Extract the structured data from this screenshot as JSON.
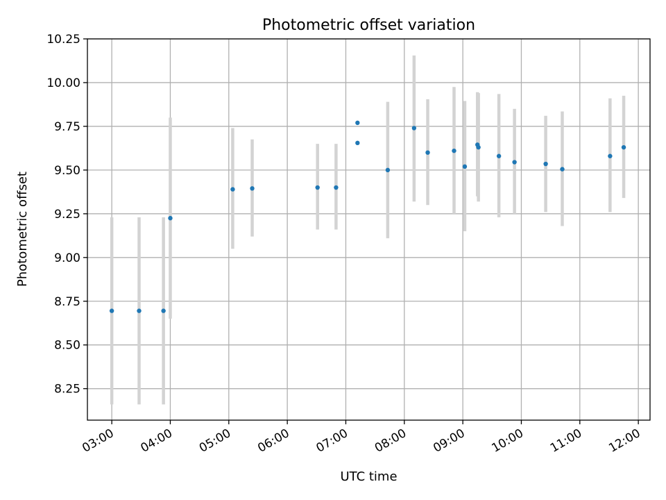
{
  "chart_data": {
    "type": "scatter",
    "title": "Photometric offset variation",
    "xlabel": "UTC time",
    "ylabel": "Photometric offset",
    "x_tick_labels": [
      "03:00",
      "04:00",
      "05:00",
      "06:00",
      "07:00",
      "08:00",
      "09:00",
      "10:00",
      "11:00",
      "12:00"
    ],
    "y_tick_labels": [
      "8.25",
      "8.50",
      "8.75",
      "9.00",
      "9.25",
      "9.50",
      "9.75",
      "10.00",
      "10.25"
    ],
    "y_ticks": [
      8.25,
      8.5,
      8.75,
      9.0,
      9.25,
      9.5,
      9.75,
      10.0,
      10.25
    ],
    "xlim": [
      "02:35",
      "12:12"
    ],
    "ylim": [
      8.07,
      10.25
    ],
    "grid": true,
    "colors": {
      "points": "#1f77b4",
      "error_bars": "#d3d3d3",
      "grid": "#b0b0b0"
    },
    "series": [
      {
        "points": [
          {
            "x": "03:00",
            "y": 8.695,
            "lo": 8.16,
            "hi": 9.23
          },
          {
            "x": "03:28",
            "y": 8.695,
            "lo": 8.16,
            "hi": 9.23
          },
          {
            "x": "03:53",
            "y": 8.695,
            "lo": 8.16,
            "hi": 9.23
          },
          {
            "x": "04:00",
            "y": 9.225,
            "lo": 8.65,
            "hi": 9.8
          },
          {
            "x": "05:04",
            "y": 9.39,
            "lo": 9.05,
            "hi": 9.74
          },
          {
            "x": "05:24",
            "y": 9.395,
            "lo": 9.12,
            "hi": 9.675
          },
          {
            "x": "06:31",
            "y": 9.4,
            "lo": 9.16,
            "hi": 9.65
          },
          {
            "x": "06:50",
            "y": 9.4,
            "lo": 9.16,
            "hi": 9.65
          },
          {
            "x": "07:12",
            "y": 9.655,
            "lo": 9.655,
            "hi": 9.655
          },
          {
            "x": "07:12",
            "y": 9.77,
            "lo": 9.77,
            "hi": 9.77
          },
          {
            "x": "07:43",
            "y": 9.5,
            "lo": 9.11,
            "hi": 9.89
          },
          {
            "x": "08:10",
            "y": 9.74,
            "lo": 9.32,
            "hi": 10.155
          },
          {
            "x": "08:24",
            "y": 9.6,
            "lo": 9.3,
            "hi": 9.905
          },
          {
            "x": "08:51",
            "y": 9.61,
            "lo": 9.25,
            "hi": 9.975
          },
          {
            "x": "09:02",
            "y": 9.52,
            "lo": 9.15,
            "hi": 9.895
          },
          {
            "x": "09:15",
            "y": 9.645,
            "lo": 9.35,
            "hi": 9.945
          },
          {
            "x": "09:16",
            "y": 9.63,
            "lo": 9.32,
            "hi": 9.94
          },
          {
            "x": "09:37",
            "y": 9.58,
            "lo": 9.23,
            "hi": 9.935
          },
          {
            "x": "09:53",
            "y": 9.545,
            "lo": 9.25,
            "hi": 9.85
          },
          {
            "x": "10:25",
            "y": 9.535,
            "lo": 9.26,
            "hi": 9.81
          },
          {
            "x": "10:42",
            "y": 9.505,
            "lo": 9.18,
            "hi": 9.835
          },
          {
            "x": "11:31",
            "y": 9.58,
            "lo": 9.26,
            "hi": 9.91
          },
          {
            "x": "11:45",
            "y": 9.63,
            "lo": 9.34,
            "hi": 9.925
          }
        ]
      }
    ]
  }
}
